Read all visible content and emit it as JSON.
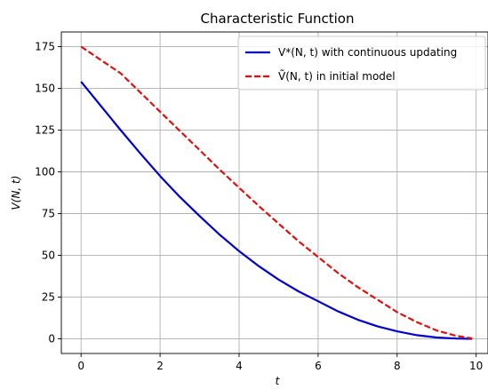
{
  "chart_data": {
    "type": "line",
    "title": "Characteristic Function",
    "xlabel": "t",
    "ylabel": "V(N, t)",
    "xlim": [
      -0.5,
      10.3
    ],
    "ylim": [
      -8.75,
      183.75
    ],
    "grid": true,
    "legend_position": "top-right",
    "x_ticks": [
      0,
      2,
      4,
      6,
      8,
      10
    ],
    "y_ticks": [
      0,
      25,
      50,
      75,
      100,
      125,
      150,
      175
    ],
    "x_tick_labels": [
      "0",
      "2",
      "4",
      "6",
      "8",
      "10"
    ],
    "y_tick_labels": [
      "0",
      "25",
      "50",
      "75",
      "100",
      "125",
      "150",
      "175"
    ],
    "series": [
      {
        "name": "V*(N, t) with continuous updating",
        "color": "#0000cc",
        "style": "solid",
        "x": [
          0,
          0.5,
          1,
          1.5,
          2,
          2.5,
          3,
          3.5,
          4,
          4.5,
          5,
          5.5,
          6,
          6.5,
          7,
          7.5,
          8,
          8.5,
          9,
          9.5,
          9.9
        ],
        "y": [
          154,
          139.5,
          125,
          111,
          97.5,
          85,
          73.5,
          62.5,
          52.5,
          43.5,
          35.5,
          28.5,
          22.5,
          16.5,
          11.5,
          7.5,
          4.5,
          2.2,
          0.8,
          0.2,
          0
        ]
      },
      {
        "name": "Ṽ(N, t) in initial model",
        "color": "#dd1111",
        "style": "dashed",
        "x": [
          0,
          0.5,
          1,
          1.5,
          2,
          2.5,
          3,
          3.5,
          4,
          4.5,
          5,
          5.5,
          6,
          6.5,
          7,
          7.5,
          8,
          8.5,
          9,
          9.5,
          9.9
        ],
        "y": [
          175,
          167,
          159,
          147.5,
          136,
          124.5,
          113,
          101.5,
          90.5,
          79.5,
          69,
          58.5,
          49,
          39.5,
          31,
          23.5,
          16,
          10,
          5,
          1.8,
          0.3
        ]
      }
    ]
  }
}
